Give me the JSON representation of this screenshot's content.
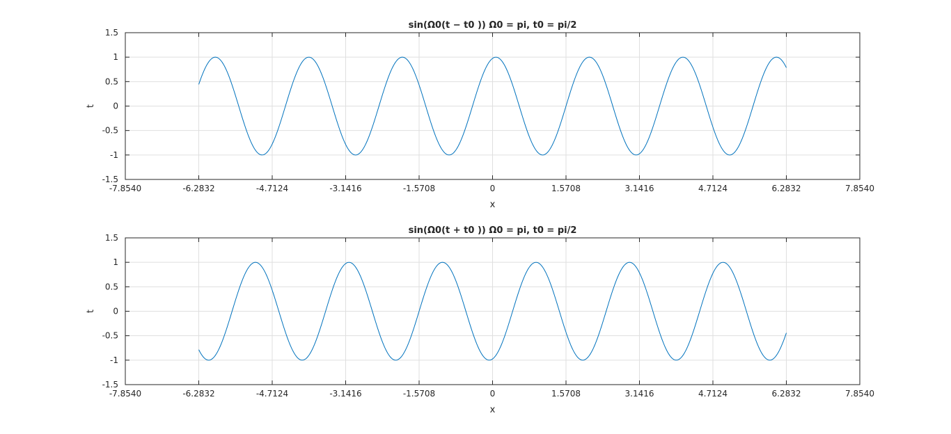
{
  "chart_data": [
    {
      "type": "line",
      "title": "sin(Ω0(t − t0 )) Ω0 = pi, t0 = pi/2",
      "xlabel": "x",
      "ylabel": "t",
      "xlim": [
        -7.854,
        7.854
      ],
      "ylim": [
        -1.5,
        1.5
      ],
      "xticks": [
        -7.854,
        -6.2832,
        -4.7124,
        -3.1416,
        -1.5708,
        0,
        1.5708,
        3.1416,
        4.7124,
        6.2832,
        7.854
      ],
      "xtick_labels": [
        "-7.8540",
        "-6.2832",
        "-4.7124",
        "-3.1416",
        "-1.5708",
        "0",
        "1.5708",
        "3.1416",
        "4.7124",
        "6.2832",
        "7.8540"
      ],
      "yticks": [
        -1.5,
        -1,
        -0.5,
        0,
        0.5,
        1,
        1.5
      ],
      "ytick_labels": [
        "-1.5",
        "-1",
        "-0.5",
        "0",
        "0.5",
        "1",
        "1.5"
      ],
      "grid": true,
      "color": "#0072bd",
      "series": [
        {
          "function": "sin(pi*(t - pi/2))",
          "x_range": [
            -6.2832,
            6.2832
          ],
          "samples": 600
        }
      ]
    },
    {
      "type": "line",
      "title": "sin(Ω0(t + t0 )) Ω0 = pi, t0 = pi/2",
      "xlabel": "x",
      "ylabel": "t",
      "xlim": [
        -7.854,
        7.854
      ],
      "ylim": [
        -1.5,
        1.5
      ],
      "xticks": [
        -7.854,
        -6.2832,
        -4.7124,
        -3.1416,
        -1.5708,
        0,
        1.5708,
        3.1416,
        4.7124,
        6.2832,
        7.854
      ],
      "xtick_labels": [
        "-7.8540",
        "-6.2832",
        "-4.7124",
        "-3.1416",
        "-1.5708",
        "0",
        "1.5708",
        "3.1416",
        "4.7124",
        "6.2832",
        "7.8540"
      ],
      "yticks": [
        -1.5,
        -1,
        -0.5,
        0,
        0.5,
        1,
        1.5
      ],
      "ytick_labels": [
        "-1.5",
        "-1",
        "-0.5",
        "0",
        "0.5",
        "1",
        "1.5"
      ],
      "grid": true,
      "color": "#0072bd",
      "series": [
        {
          "function": "sin(pi*(t + pi/2))",
          "x_range": [
            -6.2832,
            6.2832
          ],
          "samples": 600
        }
      ]
    }
  ]
}
